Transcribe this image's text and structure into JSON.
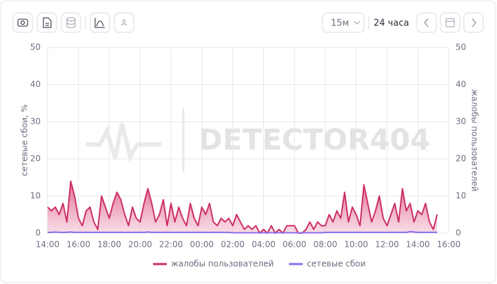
{
  "toolbar": {
    "interval": "15м",
    "range": "24 часа"
  },
  "watermark": "DETECTOR404",
  "chart_data": {
    "type": "line",
    "ylabel": "сетевые сбои, %",
    "y2label": "жалобы пользователей",
    "categories": [
      "14:00",
      null,
      null,
      null,
      null,
      null,
      null,
      null,
      "16:00",
      null,
      null,
      null,
      null,
      null,
      null,
      null,
      "18:00",
      null,
      null,
      null,
      null,
      null,
      null,
      null,
      "20:00",
      null,
      null,
      null,
      null,
      null,
      null,
      null,
      "22:00",
      null,
      null,
      null,
      null,
      null,
      null,
      null,
      "00:00",
      null,
      null,
      null,
      null,
      null,
      null,
      null,
      "02:00",
      null,
      null,
      null,
      null,
      null,
      null,
      null,
      "04:00",
      null,
      null,
      null,
      null,
      null,
      null,
      null,
      "06:00",
      null,
      null,
      null,
      null,
      null,
      null,
      null,
      "08:00",
      null,
      null,
      null,
      null,
      null,
      null,
      null,
      "10:00",
      null,
      null,
      null,
      null,
      null,
      null,
      null,
      "12:00",
      null,
      null,
      null,
      null,
      null,
      null,
      null,
      "14:00",
      null,
      null,
      null,
      null,
      null,
      null,
      null,
      "16:00"
    ],
    "series": [
      {
        "name": "жалобы пользователей",
        "color": "#cc2e64",
        "axis": "y2",
        "area": true,
        "values": [
          7,
          6,
          7,
          5,
          8,
          3,
          14,
          10,
          4,
          2,
          6,
          7,
          3,
          1,
          10,
          7,
          4,
          8,
          11,
          9,
          5,
          2,
          7,
          4,
          3,
          8,
          12,
          8,
          3,
          5,
          9,
          2,
          8,
          3,
          7,
          4,
          2,
          8,
          4,
          2,
          7,
          5,
          8,
          3,
          2,
          4,
          3,
          4,
          2,
          5,
          3,
          1,
          2,
          1,
          2,
          0,
          1,
          0,
          2,
          0,
          1,
          0,
          2,
          2,
          2,
          0,
          0,
          1,
          3,
          1,
          3,
          2,
          2,
          5,
          3,
          6,
          4,
          11,
          3,
          7,
          5,
          2,
          13,
          8,
          3,
          6,
          10,
          4,
          2,
          5,
          8,
          3,
          12,
          6,
          8,
          3,
          6,
          5,
          8,
          3,
          1,
          5,
          null,
          null,
          null
        ]
      },
      {
        "name": "сетевые сбои",
        "color": "#8b6cf0",
        "values": [
          0.2,
          0.2,
          0.3,
          0.2,
          0.2,
          0.2,
          0.3,
          0.2,
          0.2,
          0.2,
          0.2,
          0.2,
          0.2,
          0.2,
          0.2,
          0.2,
          0.2,
          0.2,
          0.2,
          0.2,
          0.2,
          0.2,
          0.2,
          0.2,
          0.2,
          0.2,
          0.3,
          0.2,
          0.2,
          0.2,
          0.2,
          0.2,
          0.2,
          0.2,
          0.2,
          0.2,
          0.2,
          0.2,
          0.2,
          0.2,
          0.2,
          0.2,
          0.2,
          0.2,
          0.2,
          0.2,
          0.2,
          0.2,
          0.1,
          0.1,
          0.1,
          0.1,
          0.1,
          0.1,
          0.1,
          0.1,
          0.1,
          0.1,
          0.1,
          0.1,
          0.1,
          0.1,
          0.1,
          0.1,
          0.1,
          0.1,
          0.1,
          0.1,
          0.1,
          0.1,
          0.1,
          0.1,
          0.2,
          0.2,
          0.2,
          0.2,
          0.2,
          0.2,
          0.2,
          0.2,
          0.2,
          0.2,
          0.2,
          0.2,
          0.2,
          0.2,
          0.2,
          0.2,
          0.2,
          0.2,
          0.2,
          0.2,
          0.2,
          0.2,
          0.4,
          0.3,
          0.2,
          0.2,
          0.2,
          0.2,
          0.2,
          0.2,
          null,
          null,
          null
        ]
      }
    ],
    "ylim": [
      0,
      50
    ],
    "yticks": [
      0,
      10,
      20,
      30,
      40,
      50
    ],
    "y2lim": [
      0,
      50
    ],
    "y2ticks": [
      0,
      10,
      20,
      30,
      40,
      50
    ],
    "grid": true,
    "legend": "bottom"
  }
}
